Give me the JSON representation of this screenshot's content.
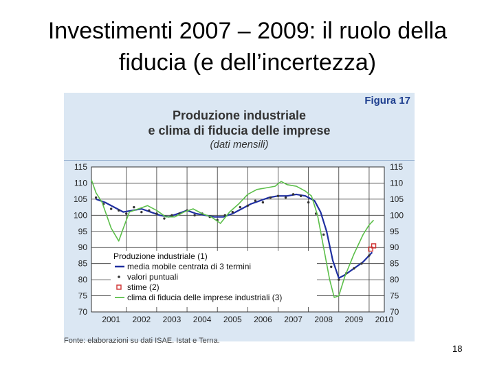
{
  "slide": {
    "title_line1": "Investimenti 2007 – 2009: il ruolo della",
    "title_line2": "fiducia (e dell’incertezza)",
    "page_number": "18"
  },
  "figure": {
    "label": "Figura 17",
    "title_line1": "Produzione industriale",
    "title_line2": "e clima di fiducia delle imprese",
    "subtitle": "(dati mensili)",
    "source": "Fonte: elaborazioni su dati ISAE, Istat e Terna."
  },
  "colors": {
    "production": "#1f2fa0",
    "confidence": "#5cbf4a",
    "estimates": "#d03030",
    "points": "#333333",
    "grid": "#333333",
    "plot_bg": "#ffffff",
    "frame_bg": "#dbe7f3"
  },
  "chart_data": {
    "type": "line",
    "x_tick_labels": [
      "2001",
      "2002",
      "2003",
      "2004",
      "2005",
      "2006",
      "2007",
      "2008",
      "2009",
      "2010"
    ],
    "ylim": [
      70,
      115
    ],
    "y_ticks": [
      115,
      110,
      105,
      100,
      95,
      90,
      85,
      80,
      75,
      70
    ],
    "grid": true,
    "legend_position": "bottom-left",
    "legend_title": "Produzione industriale (1)",
    "series": [
      {
        "name": "media mobile centrata di 3 termini",
        "color": "#1f2fa0",
        "x": [
          2001.0,
          2001.3,
          2001.6,
          2001.9,
          2002.2,
          2002.5,
          2002.8,
          2003.1,
          2003.4,
          2003.7,
          2004.0,
          2004.3,
          2004.6,
          2004.9,
          2005.2,
          2005.5,
          2005.8,
          2006.1,
          2006.4,
          2006.7,
          2007.0,
          2007.3,
          2007.6,
          2007.9,
          2008.2,
          2008.4,
          2008.6,
          2008.8,
          2009.0,
          2009.2,
          2009.5,
          2009.8,
          2010.1
        ],
        "values": [
          105,
          104,
          102.5,
          101,
          101.5,
          102,
          101,
          100,
          99.5,
          100.5,
          101.5,
          100.5,
          100,
          99.5,
          99.5,
          100.5,
          102,
          103.5,
          104.5,
          105.5,
          106,
          106,
          106.5,
          106,
          104.5,
          101,
          95,
          86,
          80.5,
          81.5,
          83.5,
          85.5,
          88.5
        ]
      },
      {
        "name": "valori puntuali",
        "color": "#333333",
        "x": [
          2001.0,
          2001.25,
          2001.5,
          2001.75,
          2002.0,
          2002.25,
          2002.5,
          2002.75,
          2003.0,
          2003.25,
          2003.5,
          2003.75,
          2004.0,
          2004.25,
          2004.5,
          2004.75,
          2005.0,
          2005.25,
          2005.5,
          2005.75,
          2006.0,
          2006.25,
          2006.5,
          2006.75,
          2007.0,
          2007.25,
          2007.5,
          2007.75,
          2008.0,
          2008.25,
          2008.5,
          2008.75,
          2009.0,
          2009.25,
          2009.5,
          2009.75,
          2010.0
        ],
        "values": [
          105.5,
          103.5,
          102,
          101.5,
          100.5,
          102.5,
          101,
          101.5,
          100.5,
          99,
          100,
          100.5,
          101.5,
          100,
          100.5,
          99.5,
          98.5,
          100,
          101,
          102.5,
          103,
          104.5,
          104,
          105.5,
          106,
          105.5,
          106.5,
          106,
          104,
          100.5,
          94,
          84,
          80,
          82,
          83.5,
          85,
          87.5
        ]
      },
      {
        "name": "stime (2)",
        "color": "#d03030",
        "x": [
          2010.05,
          2010.15
        ],
        "values": [
          89.5,
          90.5
        ]
      },
      {
        "name": "clima di fiducia delle imprese industriali (3)",
        "color": "#5cbf4a",
        "x": [
          2000.85,
          2001.0,
          2001.2,
          2001.5,
          2001.75,
          2001.9,
          2002.1,
          2002.4,
          2002.7,
          2003.0,
          2003.3,
          2003.6,
          2003.9,
          2004.2,
          2004.5,
          2004.8,
          2005.1,
          2005.4,
          2005.7,
          2006.0,
          2006.3,
          2006.6,
          2006.9,
          2007.1,
          2007.3,
          2007.6,
          2007.9,
          2008.1,
          2008.3,
          2008.5,
          2008.7,
          2008.85,
          2009.0,
          2009.2,
          2009.5,
          2009.8,
          2010.0,
          2010.15
        ],
        "values": [
          111,
          107,
          104,
          96,
          92,
          96,
          101,
          102,
          103,
          101.5,
          99.5,
          99.5,
          101,
          102,
          100.5,
          99.5,
          97.5,
          101,
          103.5,
          106.5,
          108,
          108.5,
          109,
          110.5,
          109.5,
          109,
          107.5,
          106,
          100,
          90,
          80,
          74.5,
          75,
          81,
          88,
          94,
          97,
          98.5
        ]
      }
    ]
  }
}
